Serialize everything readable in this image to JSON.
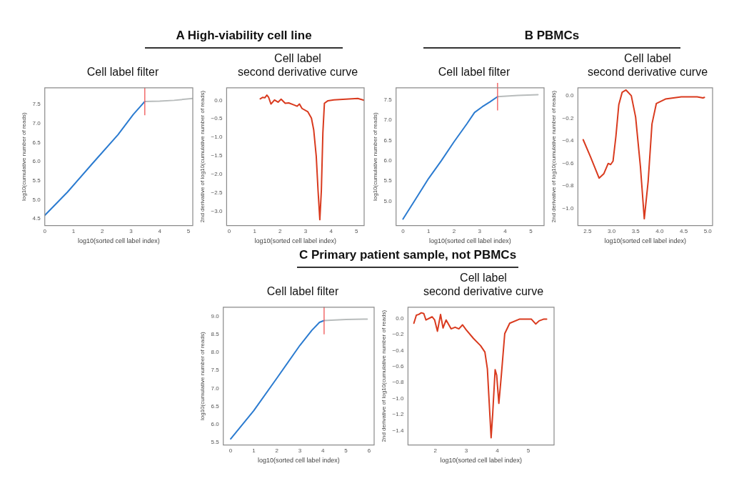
{
  "chart_data": [
    {
      "type": "line",
      "title": "Cell label filter",
      "annotations": [
        "A High-viability cell line"
      ],
      "xlabel": "log10(sorted cell label index)",
      "ylabel": "log10(cumulative number of reads)",
      "xlim": [
        0,
        5.15
      ],
      "xticks": [
        0,
        1,
        2,
        3,
        4,
        5
      ],
      "ylim": [
        4.32,
        7.94
      ],
      "yticks": [
        4.5,
        {
          "value": 5,
          "label": "5.0"
        },
        5.5,
        {
          "value": 6,
          "label": "6.0"
        },
        6.5,
        {
          "value": 7,
          "label": "7.0"
        },
        7.5
      ],
      "legend": false,
      "marker": "none",
      "line_style": "solid",
      "ref_lines": [
        {
          "axis": "x",
          "value": 3.48,
          "color": "#f26a6a"
        }
      ],
      "series": [
        {
          "color": "#2b7bd0",
          "x": [
            0,
            0.79,
            1.67,
            2.55,
            3.08,
            3.35,
            3.48
          ],
          "values": [
            4.59,
            5.2,
            5.96,
            6.71,
            7.24,
            7.47,
            7.58
          ]
        },
        {
          "color": "#b8bcbc",
          "x": [
            3.48,
            4,
            4.5,
            5.15
          ],
          "values": [
            7.58,
            7.59,
            7.61,
            7.66
          ]
        }
      ]
    },
    {
      "type": "line",
      "title": "Cell label\nsecond derivative curve",
      "xlabel": "log10(sorted cell label index)",
      "ylabel": "2nd derivative of log10(cumulative number of reads)",
      "xlim": [
        -0.1,
        5.3
      ],
      "xticks": [
        0,
        1,
        2,
        3,
        4,
        5
      ],
      "ylim": [
        -3.39,
        0.34
      ],
      "yticks": [
        {
          "value": -3,
          "label": "−3.0"
        },
        {
          "value": -2.5,
          "label": "−2.5"
        },
        {
          "value": -2,
          "label": "−2.0"
        },
        {
          "value": -1.5,
          "label": "−1.5"
        },
        {
          "value": -1,
          "label": "−1.0"
        },
        {
          "value": -0.5,
          "label": "−0.5"
        },
        {
          "value": 0,
          "label": "0.0"
        }
      ],
      "legend": false,
      "marker": "none",
      "line_style": "solid",
      "series": [
        {
          "color": "#d93a1e",
          "x": [
            1.22,
            1.31,
            1.4,
            1.48,
            1.55,
            1.64,
            1.78,
            1.92,
            2.04,
            2.2,
            2.34,
            2.53,
            2.67,
            2.76,
            2.86,
            3.09,
            3.23,
            3.32,
            3.42,
            3.49,
            3.56,
            3.62,
            3.68,
            3.74,
            3.88,
            4.11,
            4.58,
            5.05,
            5.3
          ],
          "values": [
            0.04,
            0.08,
            0.07,
            0.14,
            0.08,
            -0.1,
            0.01,
            -0.05,
            0.03,
            -0.08,
            -0.07,
            -0.12,
            -0.16,
            -0.1,
            -0.22,
            -0.31,
            -0.48,
            -0.8,
            -1.52,
            -2.44,
            -3.23,
            -2.44,
            -0.87,
            -0.08,
            -0.01,
            0.01,
            0.03,
            0.05,
            0
          ]
        }
      ]
    },
    {
      "type": "line",
      "title": "Cell label filter",
      "annotations": [
        "B PBMCs"
      ],
      "xlabel": "log10(sorted cell label index)",
      "ylabel": "log10(cumulative number of reads)",
      "xlim": [
        -0.27,
        5.52
      ],
      "xticks": [
        0,
        1,
        2,
        3,
        4,
        5
      ],
      "ylim": [
        4.4,
        7.8
      ],
      "yticks": [
        {
          "value": 5,
          "label": "5.0"
        },
        5.5,
        {
          "value": 6,
          "label": "6.0"
        },
        6.5,
        {
          "value": 7,
          "label": "7.0"
        },
        7.5
      ],
      "legend": false,
      "marker": "none",
      "line_style": "solid",
      "ref_lines": [
        {
          "axis": "x",
          "value": 3.7,
          "color": "#f26a6a"
        }
      ],
      "series": [
        {
          "color": "#2b7bd0",
          "x": [
            0,
            0.5,
            1,
            1.5,
            2,
            2.5,
            2.8,
            3.1,
            3.4,
            3.7
          ],
          "values": [
            4.56,
            5.06,
            5.56,
            6,
            6.47,
            6.91,
            7.19,
            7.33,
            7.45,
            7.58
          ]
        },
        {
          "color": "#b8bcbc",
          "x": [
            3.7,
            4.5,
            5.28
          ],
          "values": [
            7.58,
            7.61,
            7.63
          ]
        }
      ]
    },
    {
      "type": "line",
      "title": "Cell label\nsecond derivative curve",
      "xlabel": "log10(sorted cell label index)",
      "ylabel": "2nd derivative of log10(cumulative number of reads)",
      "xlim": [
        2.3,
        5.1
      ],
      "xticks": [
        2.5,
        {
          "value": 3,
          "label": "3.0"
        },
        3.5,
        {
          "value": 4,
          "label": "4.0"
        },
        4.5,
        {
          "value": 5,
          "label": "5.0"
        }
      ],
      "ylim": [
        -1.15,
        0.07
      ],
      "yticks": [
        {
          "value": -1,
          "label": "−1.0"
        },
        {
          "value": -0.8,
          "label": "−0.8"
        },
        {
          "value": -0.6,
          "label": "−0.6"
        },
        {
          "value": -0.4,
          "label": "−0.4"
        },
        {
          "value": -0.2,
          "label": "−0.2"
        },
        {
          "value": 0,
          "label": "0.0"
        }
      ],
      "legend": false,
      "marker": "none",
      "line_style": "solid",
      "series": [
        {
          "color": "#d93a1e",
          "x": [
            2.41,
            2.56,
            2.74,
            2.84,
            2.93,
            2.98,
            3.03,
            3.09,
            3.15,
            3.22,
            3.3,
            3.41,
            3.5,
            3.6,
            3.68,
            3.76,
            3.84,
            3.93,
            4.12,
            4.45,
            4.78,
            4.9,
            4.93
          ],
          "values": [
            -0.39,
            -0.54,
            -0.73,
            -0.69,
            -0.6,
            -0.61,
            -0.58,
            -0.36,
            -0.08,
            0.03,
            0.05,
            0,
            -0.19,
            -0.63,
            -1.09,
            -0.76,
            -0.25,
            -0.07,
            -0.03,
            -0.01,
            -0.01,
            -0.02,
            -0.015
          ]
        }
      ]
    },
    {
      "type": "line",
      "title": "Cell label filter",
      "annotations": [
        "C Primary patient sample, not PBMCs"
      ],
      "xlabel": "log10(sorted cell label index)",
      "ylabel": "log10(cumulative number of reads)",
      "xlim": [
        -0.32,
        6.22
      ],
      "xticks": [
        0,
        1,
        2,
        3,
        4,
        5,
        6
      ],
      "ylim": [
        5.43,
        9.25
      ],
      "yticks": [
        5.5,
        {
          "value": 6,
          "label": "6.0"
        },
        6.5,
        {
          "value": 7,
          "label": "7.0"
        },
        7.5,
        {
          "value": 8,
          "label": "8.0"
        },
        8.5,
        {
          "value": 9,
          "label": "9.0"
        }
      ],
      "legend": false,
      "marker": "none",
      "line_style": "solid",
      "ref_lines": [
        {
          "axis": "x",
          "value": 4.05,
          "color": "#f26a6a"
        }
      ],
      "series": [
        {
          "color": "#2b7bd0",
          "x": [
            0,
            1,
            2,
            3,
            3.52,
            3.85,
            4.05
          ],
          "values": [
            5.6,
            6.38,
            7.28,
            8.19,
            8.61,
            8.83,
            8.88
          ]
        },
        {
          "color": "#b8bcbc",
          "x": [
            4.05,
            5,
            5.92
          ],
          "values": [
            8.88,
            8.91,
            8.92
          ]
        }
      ]
    },
    {
      "type": "line",
      "title": "Cell label\nsecond derivative curve",
      "xlabel": "log10(sorted cell label index)",
      "ylabel": "2nd derivative of log10(cumulative number of reads)",
      "xlim": [
        1.12,
        5.83
      ],
      "xticks": [
        2,
        3,
        4,
        5
      ],
      "ylim": [
        -1.58,
        0.14
      ],
      "yticks": [
        {
          "value": -1.4,
          "label": "−1.4"
        },
        {
          "value": -1.2,
          "label": "−1.2"
        },
        {
          "value": -1,
          "label": "−1.0"
        },
        {
          "value": -0.8,
          "label": "−0.8"
        },
        {
          "value": -0.6,
          "label": "−0.6"
        },
        {
          "value": -0.4,
          "label": "−0.4"
        },
        {
          "value": -0.2,
          "label": "−0.2"
        },
        {
          "value": 0,
          "label": "0.0"
        }
      ],
      "legend": false,
      "marker": "none",
      "line_style": "solid",
      "series": [
        {
          "color": "#d93a1e",
          "x": [
            1.31,
            1.39,
            1.47,
            1.55,
            1.63,
            1.7,
            1.9,
            1.98,
            2.07,
            2.17,
            2.25,
            2.35,
            2.51,
            2.64,
            2.76,
            2.88,
            2.99,
            3.23,
            3.46,
            3.6,
            3.68,
            3.74,
            3.8,
            3.85,
            3.93,
            3.98,
            4.05,
            4.13,
            4.24,
            4.4,
            4.71,
            5.1,
            5.24,
            5.35,
            5.49,
            5.59
          ],
          "values": [
            -0.06,
            0.04,
            0.05,
            0.07,
            0.06,
            -0.02,
            0.02,
            -0.02,
            -0.16,
            0.05,
            -0.12,
            -0.02,
            -0.13,
            -0.11,
            -0.13,
            -0.08,
            -0.14,
            -0.25,
            -0.34,
            -0.42,
            -0.63,
            -1.06,
            -1.49,
            -1.2,
            -0.64,
            -0.71,
            -1.06,
            -0.71,
            -0.19,
            -0.06,
            -0.01,
            -0.01,
            -0.07,
            -0.03,
            -0.01,
            -0.01
          ]
        }
      ]
    }
  ]
}
